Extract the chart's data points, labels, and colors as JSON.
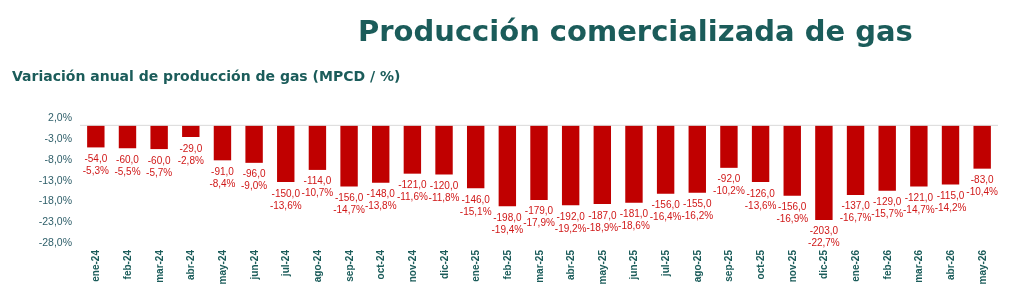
{
  "chart_data": {
    "type": "bar",
    "title": "Producción comercializada de gas",
    "subtitle": "Variación anual de producción de gas (MPCD / %)",
    "categories": [
      "ene-24",
      "feb-24",
      "mar-24",
      "abr-24",
      "may-24",
      "jun-24",
      "jul-24",
      "ago-24",
      "sep-24",
      "oct-24",
      "nov-24",
      "dic-24",
      "ene-25",
      "feb-25",
      "mar-25",
      "abr-25",
      "may-25",
      "jun-25",
      "jul-25",
      "ago-25",
      "sep-25",
      "oct-25",
      "nov-25",
      "dic-25",
      "ene-26",
      "feb-26",
      "mar-26",
      "abr-26",
      "may-26"
    ],
    "values": [
      -5.3,
      -5.5,
      -5.7,
      -2.8,
      -8.4,
      -9.0,
      -13.6,
      -10.7,
      -14.7,
      -13.8,
      -11.6,
      -11.8,
      -15.1,
      -19.4,
      -17.9,
      -19.2,
      -18.9,
      -18.6,
      -16.4,
      -16.2,
      -10.2,
      -13.6,
      -16.9,
      -22.7,
      -16.7,
      -15.7,
      -14.7,
      -14.2,
      -10.4
    ],
    "value_labels": [
      "-54,0\n-5,3%",
      "-60,0\n-5,5%",
      "-60,0\n-5,7%",
      "-29,0\n-2,8%",
      "-91,0\n-8,4%",
      "-96,0\n-9,0%",
      "-150,0\n-13,6%",
      "-114,0\n-10,7%",
      "-156,0\n-14,7%",
      "-148,0\n-13,8%",
      "-121,0\n-11,6%",
      "-120,0\n-11,8%",
      "-146,0\n-15,1%",
      "-198,0\n-19,4%",
      "-179,0\n-17,9%",
      "-192,0\n-19,2%",
      "-187,0\n-18,9%",
      "-181,0\n-18,6%",
      "-156,0\n-16,4%",
      "-155,0\n-16,2%",
      "-92,0\n-10,2%",
      "-126,0\n-13,6%",
      "-156,0\n-16,9%",
      "-203,0\n-22,7%",
      "-137,0\n-16,7%",
      "-129,0\n-15,7%",
      "-121,0\n-14,7%",
      "-115,0\n-14,2%",
      "-83,0\n-10,4%"
    ],
    "color": "#c00000",
    "ylim": [
      -28,
      2
    ],
    "yticks": [
      {
        "value": -28,
        "label": "-28,0%"
      },
      {
        "value": -23,
        "label": "-23,0%"
      },
      {
        "value": -18,
        "label": "-18,0%"
      },
      {
        "value": -13,
        "label": "-13,0%"
      },
      {
        "value": -8,
        "label": "-8,0%"
      },
      {
        "value": -3,
        "label": "-3,0%"
      },
      {
        "value": 2,
        "label": "2,0%"
      }
    ],
    "grid": false
  }
}
